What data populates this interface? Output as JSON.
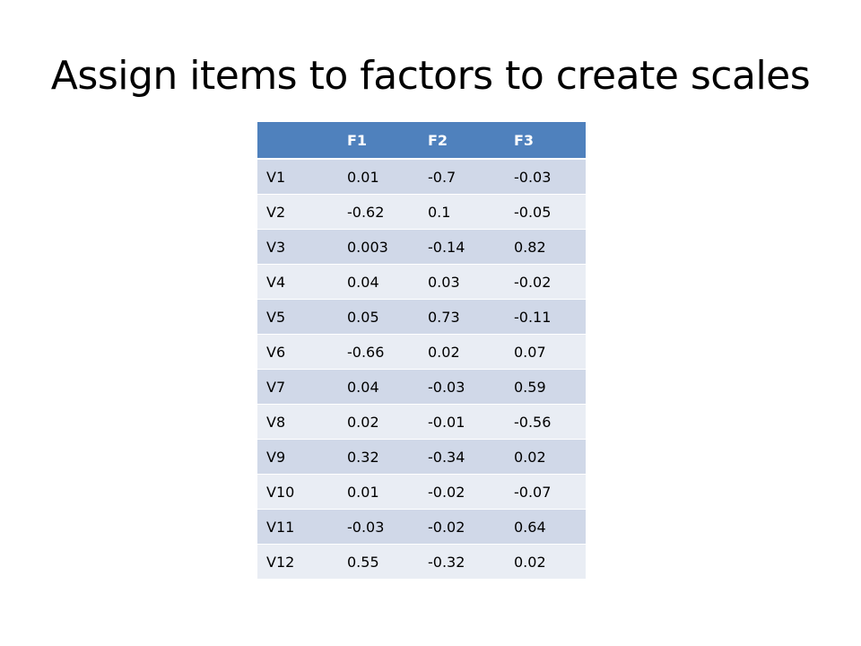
{
  "title": "Assign items to factors to create scales",
  "table": {
    "headers": [
      "",
      "F1",
      "F2",
      "F3"
    ],
    "rows": [
      [
        "V1",
        "0.01",
        "-0.7",
        "-0.03"
      ],
      [
        "V2",
        "-0.62",
        "0.1",
        "-0.05"
      ],
      [
        "V3",
        "0.003",
        "-0.14",
        "0.82"
      ],
      [
        "V4",
        "0.04",
        "0.03",
        "-0.02"
      ],
      [
        "V5",
        "0.05",
        "0.73",
        "-0.11"
      ],
      [
        "V6",
        "-0.66",
        "0.02",
        "0.07"
      ],
      [
        "V7",
        "0.04",
        "-0.03",
        "0.59"
      ],
      [
        "V8",
        "0.02",
        "-0.01",
        "-0.56"
      ],
      [
        "V9",
        "0.32",
        "-0.34",
        "0.02"
      ],
      [
        "V10",
        "0.01",
        "-0.02",
        "-0.07"
      ],
      [
        "V11",
        "-0.03",
        "-0.02",
        "0.64"
      ],
      [
        "V12",
        "0.55",
        "-0.32",
        "0.02"
      ]
    ]
  },
  "colors": {
    "header_fill": "#4f81bd",
    "row_band_dark": "#d0d8e8",
    "row_band_light": "#e9edf4"
  }
}
